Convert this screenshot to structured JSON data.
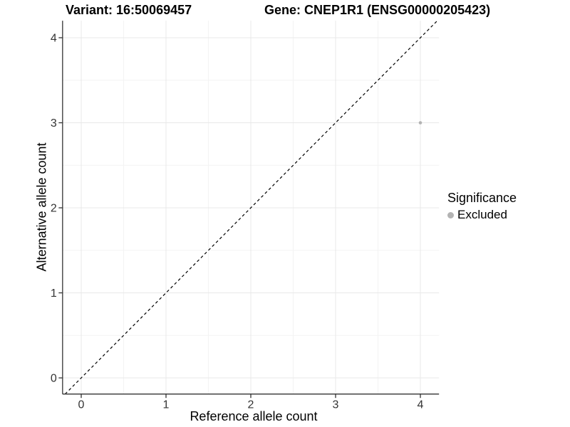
{
  "chart_data": {
    "type": "scatter",
    "title_left": "Variant: 16:50069457",
    "title_right": "Gene: CNEP1R1 (ENSG00000205423)",
    "xlabel": "Reference allele count",
    "ylabel": "Alternative allele count",
    "xticks": [
      0,
      1,
      2,
      3,
      4
    ],
    "yticks": [
      0,
      1,
      2,
      3,
      4
    ],
    "xlim": [
      -0.22,
      4.22
    ],
    "ylim": [
      -0.19,
      4.2
    ],
    "grid": {
      "major": true,
      "minor": true,
      "major_color": "#e8e8e8",
      "minor_color": "#f3f3f3"
    },
    "axis_color": "#333333",
    "tick_label_color": "#333333",
    "series": [
      {
        "name": "Excluded",
        "color": "#b3b3b3",
        "points": [
          [
            4,
            3
          ]
        ]
      }
    ],
    "reference_line": {
      "kind": "identity",
      "slope": 1,
      "intercept": 0,
      "style": "dashed",
      "color": "#000000"
    },
    "legend": {
      "title": "Significance",
      "position": "right",
      "entries": [
        "Excluded"
      ]
    }
  }
}
